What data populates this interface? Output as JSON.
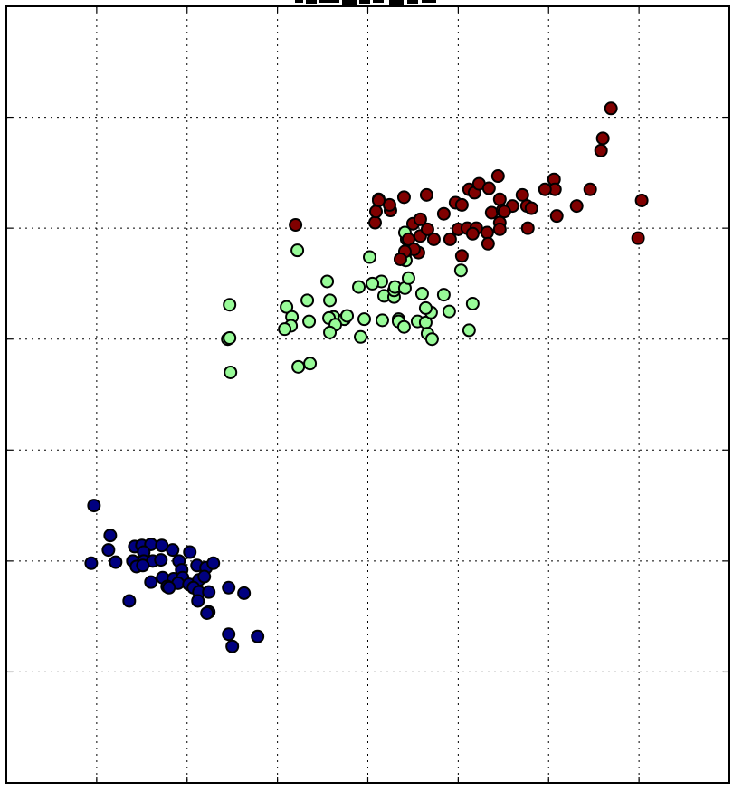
{
  "chart_data": {
    "type": "scatter",
    "title": "",
    "xlabel": "",
    "ylabel": "",
    "xlim": [
      0,
      8
    ],
    "ylim": [
      0,
      7
    ],
    "grid": true,
    "x_ticks": [
      1,
      2,
      3,
      4,
      5,
      6,
      7
    ],
    "y_ticks": [
      1,
      2,
      3,
      4,
      5,
      6
    ],
    "series": [
      {
        "color": "#000080",
        "points": [
          [
            0.97,
            2.5
          ],
          [
            0.94,
            1.98
          ],
          [
            1.15,
            2.23
          ],
          [
            1.13,
            2.1
          ],
          [
            1.21,
            1.99
          ],
          [
            1.42,
            2.13
          ],
          [
            1.5,
            2.14
          ],
          [
            1.6,
            2.15
          ],
          [
            1.72,
            2.14
          ],
          [
            1.52,
            2.08
          ],
          [
            1.4,
            2.0
          ],
          [
            1.52,
            2.0
          ],
          [
            1.62,
            2.0
          ],
          [
            1.71,
            2.01
          ],
          [
            1.84,
            2.1
          ],
          [
            1.91,
            2.0
          ],
          [
            1.44,
            1.95
          ],
          [
            1.51,
            1.96
          ],
          [
            2.03,
            2.08
          ],
          [
            1.94,
            1.92
          ],
          [
            2.11,
            1.96
          ],
          [
            2.21,
            1.94
          ],
          [
            2.29,
            1.98
          ],
          [
            1.73,
            1.85
          ],
          [
            1.85,
            1.84
          ],
          [
            1.95,
            1.85
          ],
          [
            1.6,
            1.81
          ],
          [
            1.9,
            1.8
          ],
          [
            1.78,
            1.77
          ],
          [
            2.02,
            1.79
          ],
          [
            2.13,
            1.83
          ],
          [
            2.19,
            1.86
          ],
          [
            1.8,
            1.76
          ],
          [
            2.07,
            1.76
          ],
          [
            2.13,
            1.72
          ],
          [
            2.24,
            1.72
          ],
          [
            2.46,
            1.76
          ],
          [
            2.63,
            1.71
          ],
          [
            2.12,
            1.64
          ],
          [
            1.36,
            1.64
          ],
          [
            2.24,
            1.54
          ],
          [
            2.22,
            1.53
          ],
          [
            2.46,
            1.34
          ],
          [
            2.78,
            1.32
          ],
          [
            2.5,
            1.23
          ]
        ]
      },
      {
        "color": "#98fb98",
        "points": [
          [
            2.47,
            4.31
          ],
          [
            2.45,
            4.0
          ],
          [
            2.47,
            4.01
          ],
          [
            2.48,
            3.7
          ],
          [
            3.1,
            4.29
          ],
          [
            3.16,
            4.2
          ],
          [
            3.15,
            4.12
          ],
          [
            3.08,
            4.09
          ],
          [
            3.33,
            4.35
          ],
          [
            3.55,
            4.52
          ],
          [
            3.35,
            4.16
          ],
          [
            3.58,
            4.35
          ],
          [
            3.62,
            4.2
          ],
          [
            3.57,
            4.19
          ],
          [
            3.74,
            4.18
          ],
          [
            3.77,
            4.21
          ],
          [
            3.64,
            4.13
          ],
          [
            3.9,
            4.47
          ],
          [
            3.58,
            4.06
          ],
          [
            3.96,
            4.18
          ],
          [
            3.22,
            4.8
          ],
          [
            3.92,
            4.02
          ],
          [
            4.15,
            4.52
          ],
          [
            4.05,
            4.5
          ],
          [
            4.02,
            4.74
          ],
          [
            4.18,
            4.39
          ],
          [
            4.29,
            4.38
          ],
          [
            4.29,
            4.44
          ],
          [
            4.3,
            4.47
          ],
          [
            4.41,
            4.46
          ],
          [
            4.16,
            4.17
          ],
          [
            4.34,
            4.18
          ],
          [
            4.34,
            4.16
          ],
          [
            4.4,
            4.11
          ],
          [
            4.45,
            4.55
          ],
          [
            4.6,
            4.41
          ],
          [
            4.55,
            4.16
          ],
          [
            4.64,
            4.15
          ],
          [
            4.66,
            4.05
          ],
          [
            4.71,
            4.0
          ],
          [
            4.7,
            4.24
          ],
          [
            4.64,
            4.28
          ],
          [
            4.84,
            4.4
          ],
          [
            4.9,
            4.25
          ],
          [
            5.03,
            4.62
          ],
          [
            5.16,
            4.32
          ],
          [
            5.12,
            4.08
          ],
          [
            4.43,
            4.9
          ],
          [
            4.41,
            4.96
          ],
          [
            3.36,
            3.78
          ],
          [
            3.23,
            3.75
          ],
          [
            4.41,
            4.74
          ],
          [
            4.42,
            4.71
          ]
        ]
      },
      {
        "color": "#800000",
        "points": [
          [
            3.2,
            5.03
          ],
          [
            4.12,
            5.26
          ],
          [
            4.25,
            5.16
          ],
          [
            4.24,
            5.21
          ],
          [
            4.4,
            5.28
          ],
          [
            4.5,
            5.04
          ],
          [
            4.58,
            4.93
          ],
          [
            4.58,
            5.08
          ],
          [
            4.45,
            4.9
          ],
          [
            4.65,
            5.3
          ],
          [
            4.84,
            5.13
          ],
          [
            4.97,
            5.23
          ],
          [
            5.12,
            5.35
          ],
          [
            5.18,
            5.32
          ],
          [
            5.23,
            5.4
          ],
          [
            5.34,
            5.36
          ],
          [
            5.44,
            5.47
          ],
          [
            5.46,
            5.26
          ],
          [
            5.37,
            5.14
          ],
          [
            5.49,
            5.16
          ],
          [
            5.6,
            5.2
          ],
          [
            5.51,
            5.15
          ],
          [
            5.46,
            5.05
          ],
          [
            5.71,
            5.3
          ],
          [
            5.76,
            5.2
          ],
          [
            5.77,
            5.0
          ],
          [
            5.04,
            5.21
          ],
          [
            5.0,
            4.99
          ],
          [
            5.1,
            5.0
          ],
          [
            5.2,
            5.0
          ],
          [
            5.16,
            4.95
          ],
          [
            5.32,
            4.96
          ],
          [
            5.33,
            4.86
          ],
          [
            5.46,
            4.99
          ],
          [
            4.91,
            4.9
          ],
          [
            4.73,
            4.9
          ],
          [
            4.66,
            4.99
          ],
          [
            4.56,
            4.78
          ],
          [
            4.51,
            4.81
          ],
          [
            4.41,
            4.79
          ],
          [
            4.36,
            4.72
          ],
          [
            4.08,
            5.05
          ],
          [
            4.09,
            5.15
          ],
          [
            4.12,
            5.25
          ],
          [
            5.04,
            4.75
          ],
          [
            6.06,
            5.44
          ],
          [
            6.07,
            5.35
          ],
          [
            5.96,
            5.35
          ],
          [
            5.81,
            5.18
          ],
          [
            6.09,
            5.11
          ],
          [
            6.31,
            5.2
          ],
          [
            6.46,
            5.35
          ],
          [
            6.58,
            5.7
          ],
          [
            6.6,
            5.81
          ],
          [
            6.69,
            6.08
          ],
          [
            7.03,
            5.25
          ],
          [
            6.99,
            4.91
          ]
        ]
      }
    ]
  }
}
